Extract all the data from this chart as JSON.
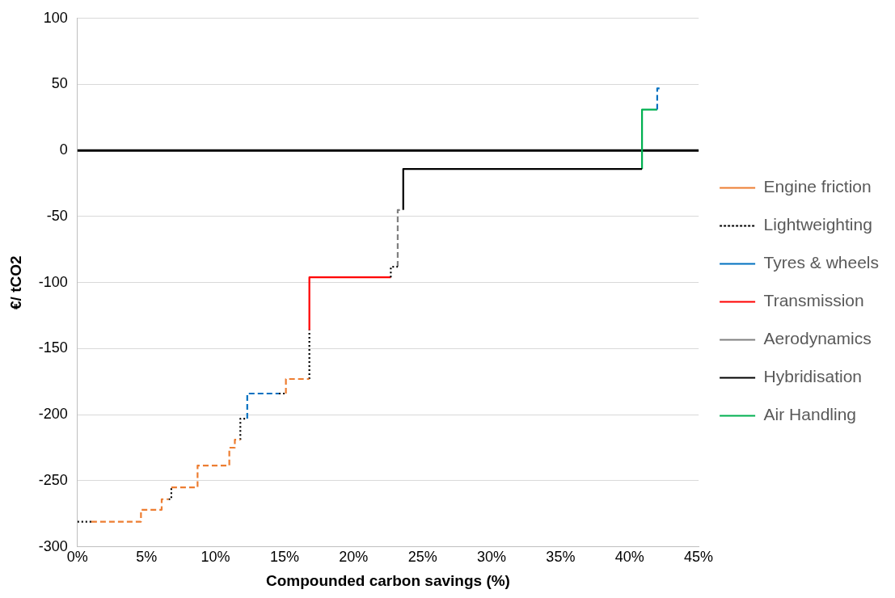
{
  "chart_data": {
    "type": "line",
    "xlabel": "Compounded carbon savings (%)",
    "ylabel": "€/ tCO2",
    "xlim": [
      0,
      45
    ],
    "xticks": [
      {
        "value": 0,
        "label": "0%"
      },
      {
        "value": 5,
        "label": "5%"
      },
      {
        "value": 10,
        "label": "10%"
      },
      {
        "value": 15,
        "label": "15%"
      },
      {
        "value": 20,
        "label": "20%"
      },
      {
        "value": 25,
        "label": "25%"
      },
      {
        "value": 30,
        "label": "30%"
      },
      {
        "value": 35,
        "label": "35%"
      },
      {
        "value": 40,
        "label": "40%"
      },
      {
        "value": 45,
        "label": "45%"
      }
    ],
    "ylim": [
      -300,
      100
    ],
    "yticks": [
      -300,
      -250,
      -200,
      -150,
      -100,
      -50,
      0,
      50,
      100
    ],
    "grid": "y",
    "legend": "right",
    "marker": "none",
    "ref_lines": [
      {
        "axis": "y",
        "value": 0,
        "color": "#000000"
      }
    ],
    "series": [
      {
        "name": "Engine friction",
        "color": "#ed7d31",
        "line_style": "dashed",
        "x": [
          1.0,
          4.6,
          4.6,
          6.1,
          6.1,
          6.6,
          null,
          6.8,
          8.7,
          8.7,
          11.0,
          11.0,
          11.4,
          11.4,
          11.8,
          null,
          15.1,
          15.1,
          16.8
        ],
        "values": [
          -281,
          -281,
          -272,
          -272,
          -264,
          -264,
          null,
          -255,
          -255,
          -238.5,
          -238.5,
          -225,
          -225,
          -219,
          -219,
          null,
          -184,
          -173,
          -173
        ]
      },
      {
        "name": "Lightweighting",
        "color": "#000000",
        "line_style": "dotted",
        "x": [
          0,
          1.0,
          null,
          6.6,
          6.8,
          6.8,
          null,
          11.8,
          11.8,
          12.3,
          null,
          14.6,
          15.1,
          null,
          16.8,
          16.8,
          null,
          22.7,
          22.7,
          23.2
        ],
        "values": [
          -281,
          -281,
          null,
          -264,
          -264,
          -255,
          null,
          -219,
          -203,
          -203,
          null,
          -184,
          -184,
          null,
          -173,
          -136,
          null,
          -96,
          -88,
          -88
        ]
      },
      {
        "name": "Tyres & wheels",
        "color": "#0070c0",
        "line_style": "dashed",
        "x": [
          12.3,
          12.3,
          14.6,
          null,
          42.0,
          42.0,
          42.2
        ],
        "values": [
          -203,
          -184,
          -184,
          null,
          31,
          47,
          47
        ]
      },
      {
        "name": "Transmission",
        "color": "#ff0000",
        "line_style": "solid",
        "x": [
          16.8,
          16.8,
          22.7
        ],
        "values": [
          -136,
          -96,
          -96
        ]
      },
      {
        "name": "Aerodynamics",
        "color": "#808080",
        "line_style": "dashed",
        "x": [
          23.2,
          23.2,
          23.6
        ],
        "values": [
          -88,
          -45,
          -45
        ]
      },
      {
        "name": "Hybridisation",
        "color": "#000000",
        "line_style": "solid",
        "x": [
          23.6,
          23.6,
          40.9
        ],
        "values": [
          -45,
          -14,
          -14
        ]
      },
      {
        "name": "Air Handling",
        "color": "#00b050",
        "line_style": "solid",
        "x": [
          40.9,
          40.9,
          42.0
        ],
        "values": [
          -14,
          31,
          31
        ]
      }
    ]
  }
}
